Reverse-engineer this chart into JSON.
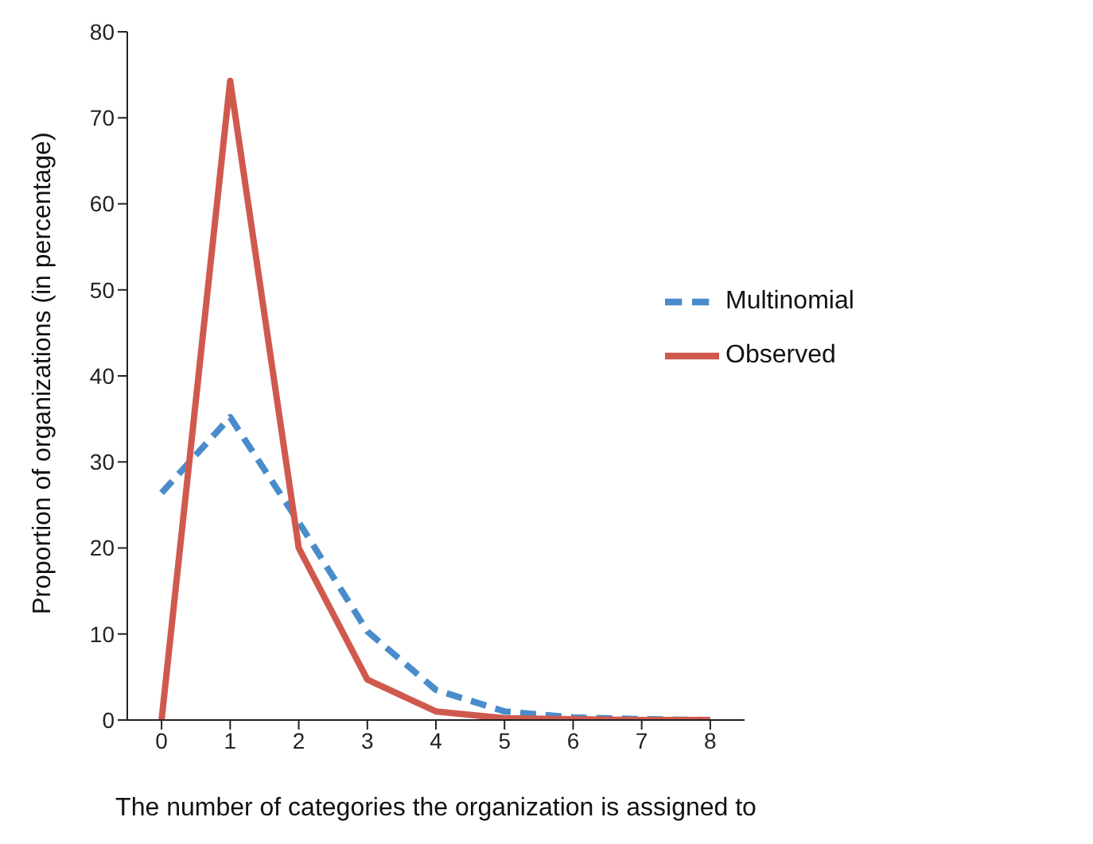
{
  "chart_data": {
    "type": "line",
    "xlabel": "The number of categories the organization is assigned to",
    "ylabel": "Proportion of organizations (in percentage)",
    "categories": [
      "0",
      "1",
      "2",
      "3",
      "4",
      "5",
      "6",
      "7",
      "8"
    ],
    "series": [
      {
        "name": "Multinomial",
        "color": "#4a8ccb",
        "line_style": "dashed",
        "values": [
          26.4,
          35.2,
          23,
          10.3,
          3.5,
          1,
          0.3,
          0.1,
          0
        ]
      },
      {
        "name": "Observed",
        "color": "#d0594e",
        "line_style": "solid",
        "values": [
          0,
          74.3,
          20,
          4.7,
          1,
          0.2,
          0.1,
          0,
          0
        ]
      }
    ],
    "ylim": [
      0,
      80
    ],
    "yticks": [
      0,
      10,
      20,
      30,
      40,
      50,
      60,
      70,
      80
    ],
    "grid": false,
    "legend": "right",
    "marker": "none"
  }
}
